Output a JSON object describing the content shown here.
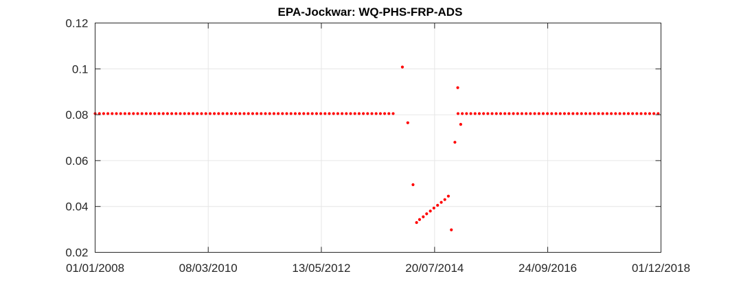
{
  "chart_data": {
    "type": "scatter",
    "title": "EPA-Jockwar: WQ-PHS-FRP-ADS",
    "xlabel": "",
    "ylabel": "",
    "x_axis_type": "date",
    "xlim": [
      "2008-01-01",
      "2018-12-01"
    ],
    "ylim": [
      0.02,
      0.12
    ],
    "x_ticks": [
      "2008-01-01",
      "2010-03-08",
      "2012-05-13",
      "2014-07-20",
      "2016-09-24",
      "2018-12-01"
    ],
    "x_tick_labels": [
      "01/01/2008",
      "08/03/2010",
      "13/05/2012",
      "20/07/2014",
      "24/09/2016",
      "01/12/2018"
    ],
    "y_ticks": [
      0.02,
      0.04,
      0.06,
      0.08,
      0.1,
      0.12
    ],
    "y_tick_labels": [
      "0.02",
      "0.04",
      "0.06",
      "0.08",
      "0.1",
      "0.12"
    ],
    "grid": true,
    "marker_color": "#ff0000",
    "series": [
      {
        "constant_segments": [
          {
            "start": "2008-01-01",
            "end": "2013-10-15",
            "step_days": 30,
            "y": 0.0805
          },
          {
            "start": "2015-01-01",
            "end": "2018-12-01",
            "step_days": 30,
            "y": 0.0805
          }
        ],
        "points": [
          {
            "x": "2013-12-05",
            "y": 0.1008
          },
          {
            "x": "2014-01-12",
            "y": 0.0765
          },
          {
            "x": "2014-02-18",
            "y": 0.0495
          },
          {
            "x": "2014-03-15",
            "y": 0.033
          },
          {
            "x": "2014-04-05",
            "y": 0.0343
          },
          {
            "x": "2014-05-01",
            "y": 0.0355
          },
          {
            "x": "2014-05-25",
            "y": 0.0368
          },
          {
            "x": "2014-06-20",
            "y": 0.038
          },
          {
            "x": "2014-07-15",
            "y": 0.0393
          },
          {
            "x": "2014-08-10",
            "y": 0.0405
          },
          {
            "x": "2014-09-05",
            "y": 0.0418
          },
          {
            "x": "2014-09-30",
            "y": 0.043
          },
          {
            "x": "2014-10-25",
            "y": 0.0445
          },
          {
            "x": "2014-11-15",
            "y": 0.0298
          },
          {
            "x": "2014-12-10",
            "y": 0.068
          },
          {
            "x": "2014-12-30",
            "y": 0.0918
          },
          {
            "x": "2015-01-20",
            "y": 0.0758
          }
        ]
      }
    ]
  }
}
